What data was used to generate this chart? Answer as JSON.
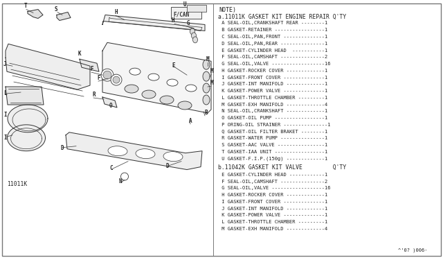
{
  "bg_color": "#ffffff",
  "border_color": "#555555",
  "text_color": "#222222",
  "diagram_color": "#333333",
  "title_note": "NOTE)",
  "section_a_title": "a.11011K GASKET KIT ENGINE REPAIR Q'TY",
  "section_a_items": [
    " A SEAL-OIL,CRANKSHAFT REAR --------1",
    " B GASKET-RETAINER -----------------1",
    " C SEAL-OIL,PAN,FRONT --------------1",
    " D SEAL-OIL,PAN,REAR ---------------1",
    " E GASKET-CYLINDER HEAD  -----------1",
    " F SEAL-OIL,CAMSHAFT ---------------2",
    " G SEAL-OIL,VALVE ------------------16",
    " H GASKET-ROCKER COVER -------------1",
    " I GASKET-FRONT COVER --------------1",
    " J GASKET-INT MANIFOLD -------------1",
    " K GASKET-POWER VALVE --------------1",
    " L GASKET-THROTTLE CHAMBER ---------1",
    " M GASKET-EXH MANIFOLD -------------4",
    " N SEAL-OIL,CRANKSHAFT -------------1",
    " O GASKET-OIL PUMP -----------------1",
    " P ORING-OIL STRAINER ---------------1",
    " Q GASKET-OIL FILTER BRAKET --------1",
    " R GASKET-WATER PUMP ---------------1",
    " S GASKET-AAC VALVE ----------------1",
    " T GASKET-IAA UNIT -----------------1",
    " U GASKET-F.I.P.(150g) -------------1"
  ],
  "section_b_title": "b.11042K GASKET KIT VALVE         Q'TY",
  "section_b_items": [
    " E GASKET-CYLINDER HEAD ------------1",
    " F SEAL-OIL,CAMSHAFT ---------------2",
    " G SEAL-OIL,VALVE ------------------16",
    " H GASKET-ROCKER COVER -------------1",
    " I GASKET-FRONT COVER --------------1",
    " J GASKET-INT MANIFOLD -------------1",
    " K GASKET-POWER VALVE --------------1",
    " L GASKET-THROTTLE CHAMBER ---------1",
    " M GASKET-EXH MANIFOLD -------------4"
  ],
  "footer": "^'0? )006·",
  "part_number": "11011K",
  "fcan_label": "F/CAN"
}
